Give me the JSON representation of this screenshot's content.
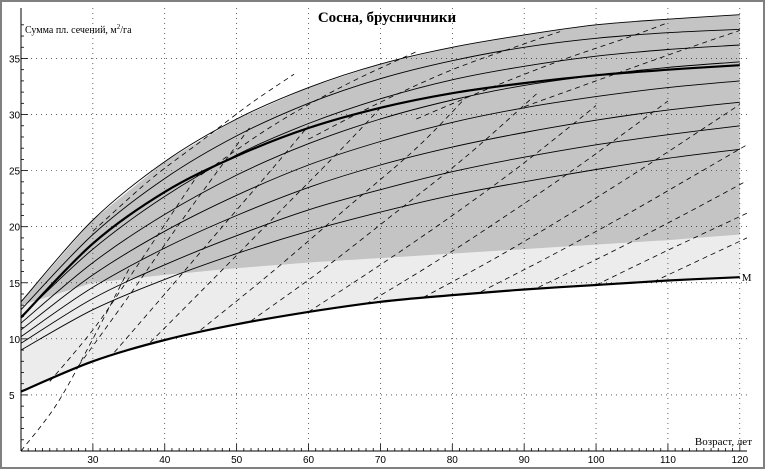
{
  "chart_data": {
    "type": "line",
    "title": "Сосна, брусничники",
    "ylabel_prefix": "Сумма пл. сечений, м",
    "ylabel_sup": "2",
    "ylabel_suffix": "/га",
    "xlabel": "Возраст, лет",
    "xlim": [
      20,
      121
    ],
    "ylim": [
      0,
      39.5
    ],
    "x_ticks": [
      30,
      40,
      50,
      60,
      70,
      80,
      90,
      100,
      110,
      120
    ],
    "y_ticks": [
      5,
      10,
      15,
      20,
      25,
      30,
      35
    ],
    "colors": {
      "band_fill": "#c4c4c4",
      "light_fill": "#ececec",
      "curve": "#000000",
      "frame": "#808080"
    },
    "band": {
      "upper": {
        "x": [
          20,
          30,
          40,
          50,
          60,
          70,
          80,
          90,
          100,
          110,
          120
        ],
        "y": [
          13.3,
          20.6,
          25.8,
          29.6,
          32.4,
          34.5,
          36.0,
          37.1,
          38.0,
          38.5,
          38.9
        ]
      },
      "lower": {
        "x": [
          20,
          30,
          40,
          50,
          60,
          70,
          80,
          90,
          100,
          110,
          120
        ],
        "y": [
          13.0,
          15.0,
          15.7,
          16.3,
          16.8,
          17.2,
          17.6,
          18.0,
          18.4,
          18.8,
          19.3
        ]
      }
    },
    "light_area": {
      "upper": {
        "x": [
          20,
          30,
          40,
          50,
          60,
          70,
          80,
          90,
          100,
          110,
          120
        ],
        "y": [
          13.0,
          15.0,
          15.7,
          16.3,
          16.8,
          17.2,
          17.6,
          18.0,
          18.4,
          18.8,
          19.3
        ]
      },
      "lower": {
        "x": [
          20,
          30,
          40,
          50,
          60,
          70,
          80,
          90,
          100,
          110,
          120
        ],
        "y": [
          5.3,
          8.0,
          9.9,
          11.3,
          12.4,
          13.3,
          13.9,
          14.4,
          14.8,
          15.2,
          15.5
        ]
      }
    },
    "series": [
      {
        "name": "",
        "role": "main",
        "x": [
          20,
          30,
          40,
          50,
          60,
          70,
          80,
          90,
          100,
          110,
          120
        ],
        "y": [
          11.9,
          18.5,
          23.1,
          26.3,
          28.8,
          30.6,
          31.9,
          32.8,
          33.5,
          34.0,
          34.4
        ]
      },
      {
        "name": "M",
        "role": "min",
        "x": [
          20,
          30,
          40,
          50,
          60,
          70,
          80,
          90,
          100,
          110,
          120
        ],
        "y": [
          5.3,
          8.0,
          9.9,
          11.3,
          12.4,
          13.3,
          13.9,
          14.4,
          14.8,
          15.2,
          15.5
        ]
      },
      {
        "name": "",
        "role": "thin",
        "x": [
          20,
          30,
          40,
          50,
          60,
          70,
          80,
          90,
          100,
          110,
          120
        ],
        "y": [
          13.3,
          20.6,
          25.8,
          29.6,
          32.4,
          34.5,
          36.0,
          37.1,
          38.0,
          38.5,
          38.9
        ]
      },
      {
        "name": "",
        "role": "thin",
        "x": [
          20,
          30,
          40,
          50,
          60,
          70,
          80,
          90,
          100,
          110,
          120
        ],
        "y": [
          12.6,
          19.3,
          24.3,
          28.1,
          31.0,
          33.2,
          34.8,
          36.0,
          36.8,
          37.3,
          37.6
        ]
      },
      {
        "name": "",
        "role": "thin",
        "x": [
          20,
          30,
          40,
          50,
          60,
          70,
          80,
          90,
          100,
          110,
          120
        ],
        "y": [
          12.0,
          18.0,
          22.7,
          26.4,
          29.2,
          31.4,
          33.1,
          34.3,
          35.2,
          35.8,
          36.2
        ]
      },
      {
        "name": "",
        "role": "thin",
        "x": [
          20,
          30,
          40,
          50,
          60,
          70,
          80,
          90,
          100,
          110,
          120
        ],
        "y": [
          11.4,
          16.8,
          21.1,
          24.6,
          27.4,
          29.6,
          31.3,
          32.6,
          33.5,
          34.2,
          34.7
        ]
      },
      {
        "name": "",
        "role": "thin",
        "x": [
          20,
          30,
          40,
          50,
          60,
          70,
          80,
          90,
          100,
          110,
          120
        ],
        "y": [
          10.8,
          15.7,
          19.6,
          22.8,
          25.5,
          27.6,
          29.3,
          30.6,
          31.6,
          32.4,
          33.0
        ]
      },
      {
        "name": "",
        "role": "thin",
        "x": [
          20,
          30,
          40,
          50,
          60,
          70,
          80,
          90,
          100,
          110,
          120
        ],
        "y": [
          10.2,
          14.6,
          18.1,
          21.0,
          23.5,
          25.5,
          27.1,
          28.4,
          29.5,
          30.4,
          31.1
        ]
      },
      {
        "name": "",
        "role": "thin",
        "x": [
          20,
          30,
          40,
          50,
          60,
          70,
          80,
          90,
          100,
          110,
          120
        ],
        "y": [
          9.6,
          13.6,
          16.6,
          19.2,
          21.5,
          23.3,
          24.9,
          26.2,
          27.3,
          28.2,
          29.0
        ]
      },
      {
        "name": "",
        "role": "thin",
        "x": [
          20,
          30,
          40,
          50,
          60,
          70,
          80,
          90,
          100,
          110,
          120
        ],
        "y": [
          9.0,
          12.6,
          15.3,
          17.6,
          19.6,
          21.3,
          22.8,
          24.0,
          25.1,
          26.1,
          26.9
        ]
      },
      {
        "name": "",
        "role": "dashed",
        "x": [
          20,
          25,
          30,
          35
        ],
        "y": [
          0.0,
          4.2,
          10.0,
          16.2
        ]
      },
      {
        "name": "",
        "role": "dashed",
        "x": [
          24,
          30,
          35,
          40,
          45
        ],
        "y": [
          6.2,
          10.8,
          15.4,
          20.2,
          25.0
        ]
      },
      {
        "name": "",
        "role": "dashed",
        "x": [
          28,
          35,
          40,
          45,
          52
        ],
        "y": [
          7.6,
          13.8,
          18.4,
          22.9,
          29.0
        ]
      },
      {
        "name": "",
        "role": "dashed",
        "x": [
          33,
          40,
          48,
          55,
          60
        ],
        "y": [
          8.8,
          14.0,
          20.0,
          25.2,
          29.0
        ]
      },
      {
        "name": "",
        "role": "dashed",
        "x": [
          38,
          45,
          55,
          65,
          70
        ],
        "y": [
          9.7,
          14.2,
          20.7,
          27.2,
          30.6
        ]
      },
      {
        "name": "",
        "role": "dashed",
        "x": [
          45,
          55,
          65,
          75,
          82
        ],
        "y": [
          10.8,
          16.0,
          21.5,
          27.0,
          31.6
        ]
      },
      {
        "name": "",
        "role": "dashed",
        "x": [
          52,
          62,
          72,
          82,
          92
        ],
        "y": [
          11.6,
          16.2,
          21.2,
          26.3,
          32.0
        ]
      },
      {
        "name": "",
        "role": "dashed",
        "x": [
          60,
          70,
          80,
          90,
          100
        ],
        "y": [
          12.4,
          16.6,
          21.0,
          25.7,
          30.8
        ]
      },
      {
        "name": "",
        "role": "dashed",
        "x": [
          68,
          78,
          88,
          98,
          110
        ],
        "y": [
          13.1,
          17.0,
          21.2,
          25.6,
          31.2
        ]
      },
      {
        "name": "",
        "role": "dashed",
        "x": [
          76,
          86,
          96,
          106,
          120
        ],
        "y": [
          13.7,
          17.2,
          21.0,
          25.0,
          30.9
        ]
      },
      {
        "name": "",
        "role": "dashed",
        "x": [
          84,
          94,
          104,
          114,
          121
        ],
        "y": [
          14.2,
          17.5,
          21.0,
          24.7,
          27.3
        ]
      },
      {
        "name": "",
        "role": "dashed",
        "x": [
          92,
          102,
          112,
          121
        ],
        "y": [
          14.6,
          17.7,
          21.0,
          24.1
        ]
      },
      {
        "name": "",
        "role": "dashed",
        "x": [
          100,
          110,
          121
        ],
        "y": [
          14.8,
          17.9,
          21.2
        ]
      },
      {
        "name": "",
        "role": "dashed",
        "x": [
          108,
          116,
          121
        ],
        "y": [
          15.1,
          17.5,
          19.0
        ]
      },
      {
        "name": "",
        "role": "dashed",
        "x": [
          30,
          38,
          45,
          52,
          58
        ],
        "y": [
          19.6,
          24.2,
          27.6,
          31.0,
          33.6
        ]
      },
      {
        "name": "",
        "role": "dashed",
        "x": [
          45,
          55,
          65,
          75
        ],
        "y": [
          24.6,
          29.0,
          32.6,
          35.6
        ]
      },
      {
        "name": "",
        "role": "dashed",
        "x": [
          60,
          70,
          80,
          90,
          95
        ],
        "y": [
          27.8,
          31.1,
          34.0,
          36.3,
          37.4
        ]
      },
      {
        "name": "",
        "role": "dashed",
        "x": [
          75,
          85,
          95,
          105,
          110
        ],
        "y": [
          29.6,
          32.3,
          34.8,
          37.0,
          38.2
        ]
      },
      {
        "name": "",
        "role": "dashed",
        "x": [
          90,
          100,
          110,
          120
        ],
        "y": [
          30.7,
          33.0,
          35.3,
          37.5
        ]
      }
    ]
  }
}
